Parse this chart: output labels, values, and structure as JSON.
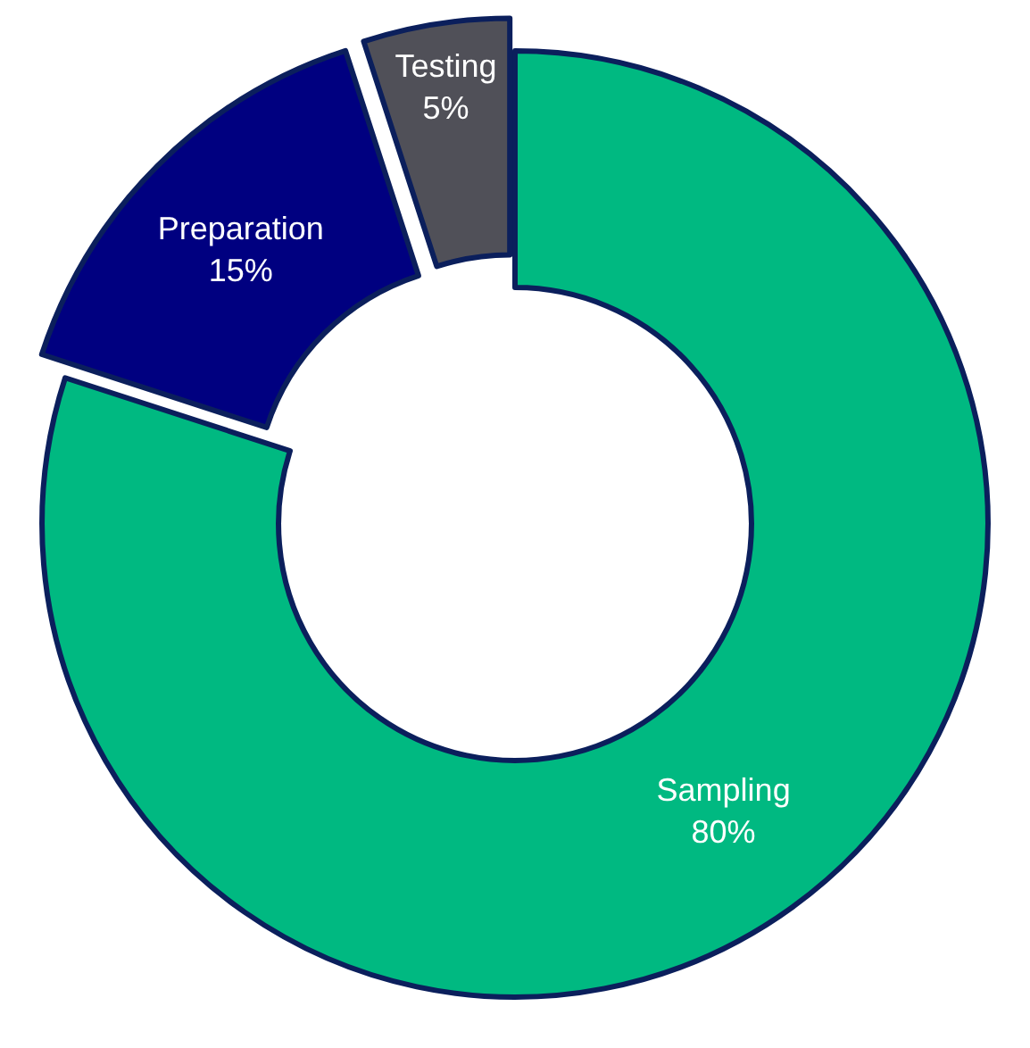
{
  "chart_data": {
    "type": "donut",
    "categories": [
      "Sampling",
      "Preparation",
      "Testing"
    ],
    "values": [
      80,
      15,
      5
    ],
    "colors": [
      "#00b981",
      "#000080",
      "#505058"
    ],
    "value_labels": [
      "80%",
      "15%",
      "5%"
    ],
    "legend": false
  }
}
